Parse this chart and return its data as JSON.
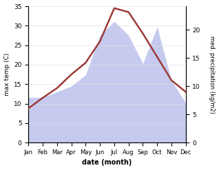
{
  "months": [
    "Jan",
    "Feb",
    "Mar",
    "Apr",
    "May",
    "Jun",
    "Jul",
    "Aug",
    "Sep",
    "Oct",
    "Nov",
    "Dec"
  ],
  "temp": [
    8.8,
    11.5,
    14.0,
    17.5,
    20.5,
    26.0,
    34.5,
    33.5,
    28.0,
    22.0,
    16.0,
    13.0
  ],
  "precip": [
    8.0,
    8.0,
    9.0,
    10.0,
    12.0,
    19.0,
    21.5,
    19.0,
    14.0,
    20.5,
    11.0,
    7.0
  ],
  "temp_color": "#9e3a3a",
  "precip_fill_color": "#c5caee",
  "temp_ylim": [
    0,
    35
  ],
  "precip_ylim": [
    0,
    24.17
  ],
  "temp_yticks": [
    0,
    5,
    10,
    15,
    20,
    25,
    30,
    35
  ],
  "precip_yticks": [
    0,
    5,
    10,
    15,
    20
  ],
  "ylabel_left": "max temp (C)",
  "ylabel_right": "med. precipitation (kg/m2)",
  "xlabel": "date (month)",
  "bg_color": "#ffffff",
  "line_width": 1.8,
  "temp_scale_max": 35,
  "precip_scale_max": 24.17
}
